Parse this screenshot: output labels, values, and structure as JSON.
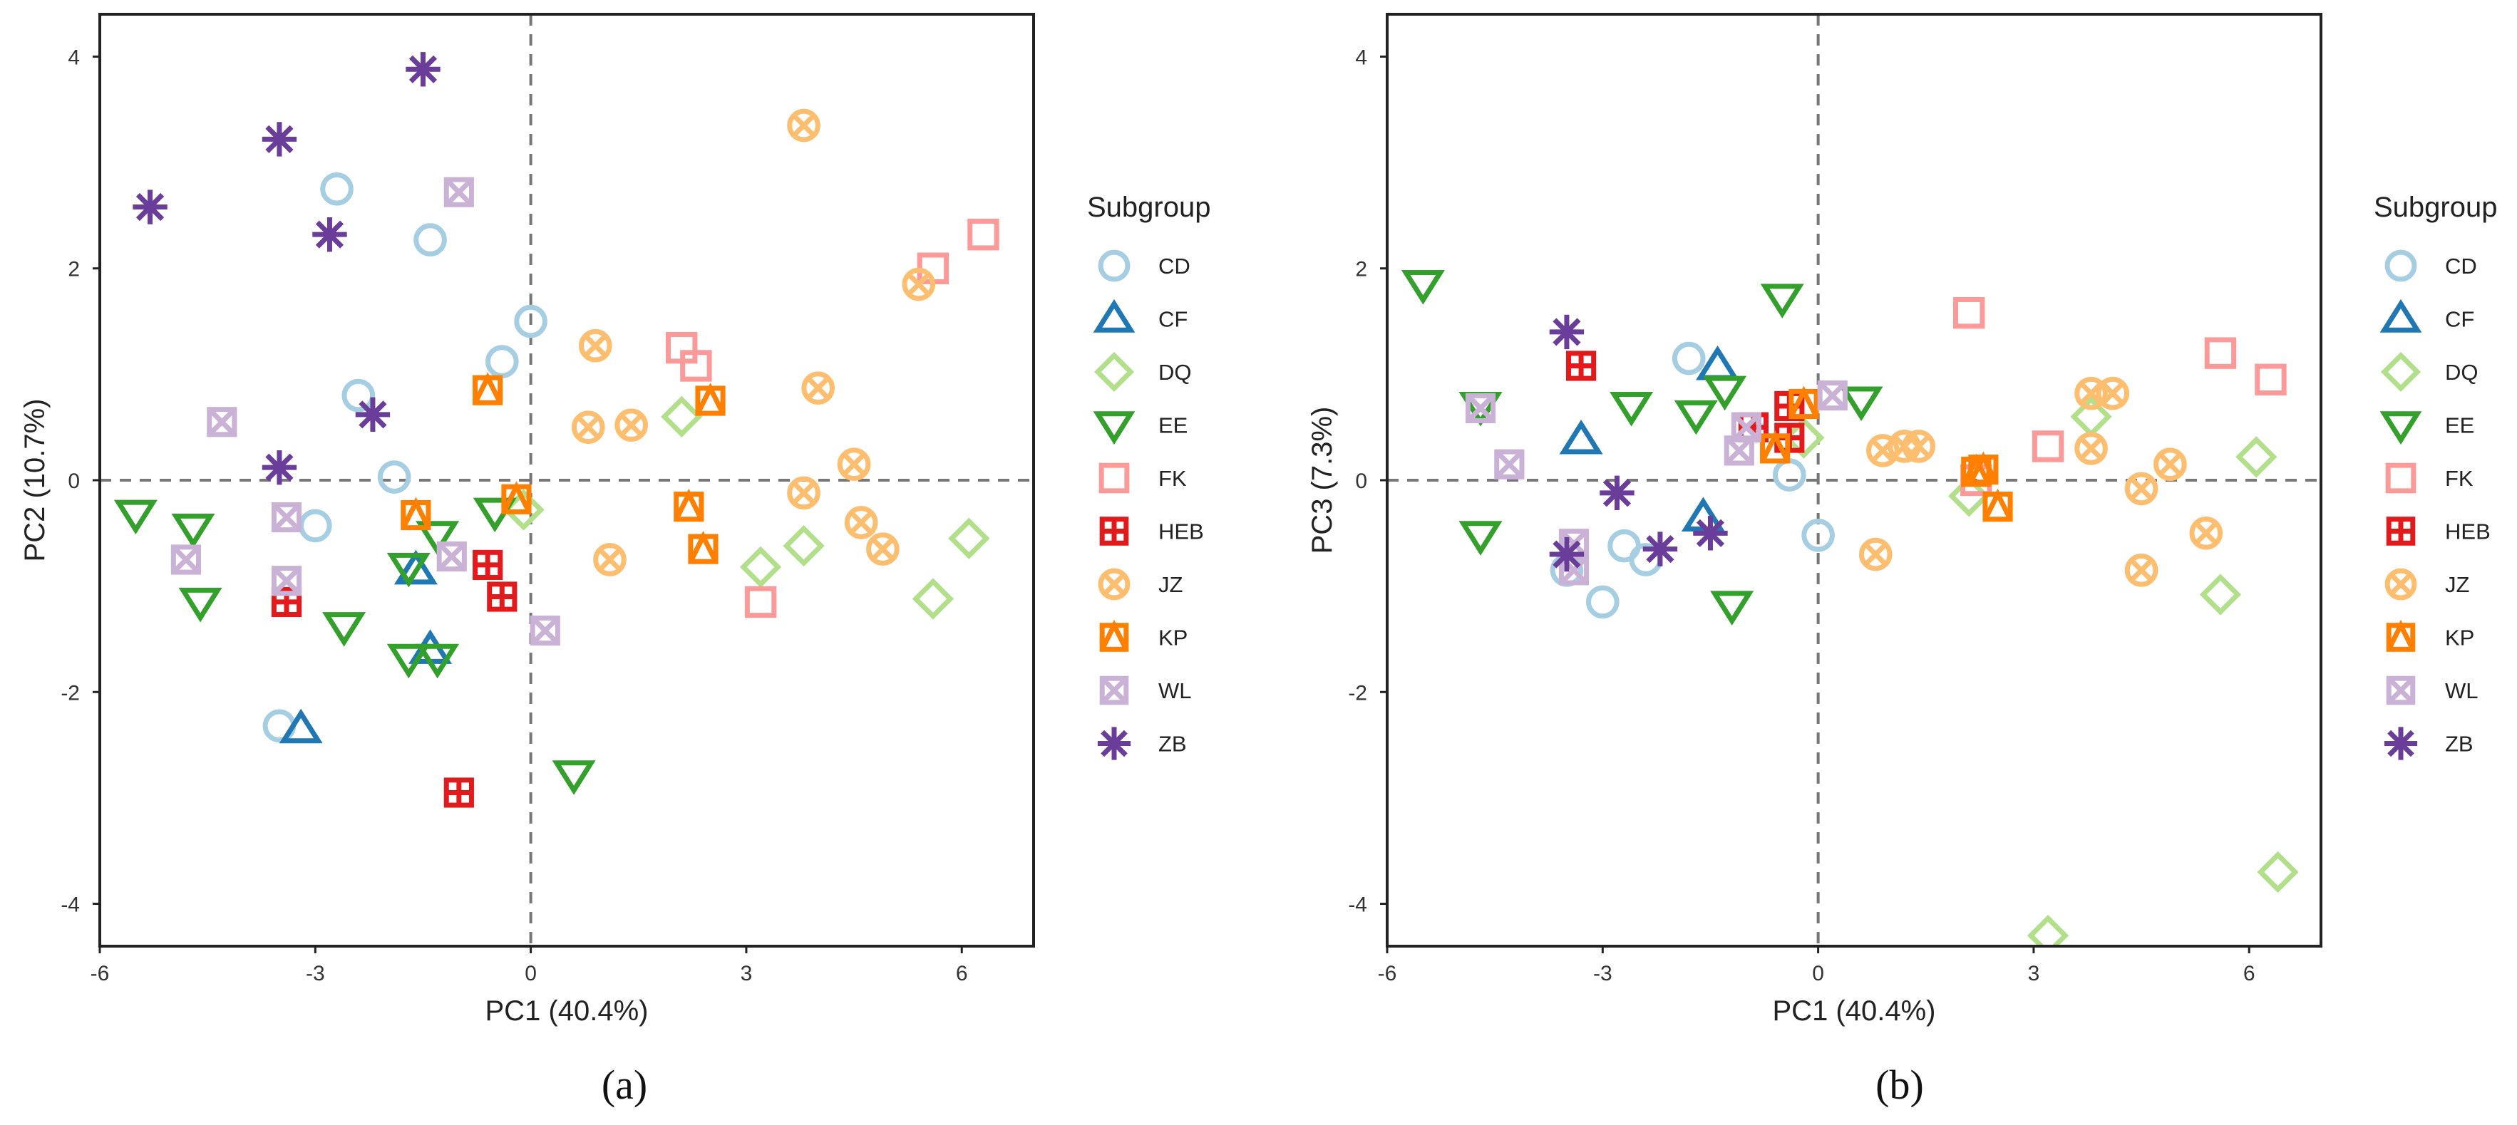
{
  "legend": {
    "title": "Subgroup",
    "items": [
      {
        "label": "CD",
        "shape": "circle",
        "color": "#a6cee3"
      },
      {
        "label": "CF",
        "shape": "triangle-up",
        "color": "#1f78b4"
      },
      {
        "label": "DQ",
        "shape": "diamond",
        "color": "#b2df8a"
      },
      {
        "label": "EE",
        "shape": "triangle-down",
        "color": "#33a02c"
      },
      {
        "label": "FK",
        "shape": "square",
        "color": "#fb9a99"
      },
      {
        "label": "HEB",
        "shape": "square-plus",
        "color": "#e31a1c"
      },
      {
        "label": "JZ",
        "shape": "circle-x",
        "color": "#fdbf6f"
      },
      {
        "label": "KP",
        "shape": "square-triangle",
        "color": "#ff7f00"
      },
      {
        "label": "WL",
        "shape": "square-x",
        "color": "#cab2d6"
      },
      {
        "label": "ZB",
        "shape": "asterisk",
        "color": "#6a3d9a"
      }
    ]
  },
  "chart_data": [
    {
      "type": "scatter",
      "panel": "(a)",
      "xlabel": "PC1 (40.4%)",
      "ylabel": "PC2 (10.7%)",
      "xlim": [
        -6,
        7
      ],
      "ylim": [
        -4.4,
        4.4
      ],
      "xticks": [
        -6,
        -3,
        0,
        3,
        6
      ],
      "yticks": [
        -4,
        -2,
        0,
        2,
        4
      ],
      "reference_lines": {
        "x": 0,
        "y": 0
      },
      "series": [
        {
          "name": "CD",
          "points": [
            [
              -2.7,
              2.75
            ],
            [
              -1.4,
              2.27
            ],
            [
              -2.4,
              0.8
            ],
            [
              -1.9,
              0.03
            ],
            [
              -3,
              -0.43
            ],
            [
              -0.4,
              1.12
            ],
            [
              0,
              1.5
            ],
            [
              -3.5,
              -2.32
            ]
          ]
        },
        {
          "name": "CF",
          "points": [
            [
              -1.6,
              -0.85
            ],
            [
              -1.4,
              -1.6
            ],
            [
              -3.2,
              -2.35
            ]
          ]
        },
        {
          "name": "DQ",
          "points": [
            [
              2.1,
              0.6
            ],
            [
              3.8,
              -0.62
            ],
            [
              3.2,
              -0.82
            ],
            [
              6.1,
              -0.55
            ],
            [
              5.6,
              -1.12
            ],
            [
              -0.1,
              -0.28
            ]
          ]
        },
        {
          "name": "EE",
          "points": [
            [
              -5.5,
              -0.32
            ],
            [
              -4.7,
              -0.45
            ],
            [
              -4.6,
              -1.15
            ],
            [
              -2.6,
              -1.38
            ],
            [
              -1.7,
              -0.82
            ],
            [
              -1.3,
              -0.52
            ],
            [
              -1.7,
              -1.68
            ],
            [
              -1.3,
              -1.68
            ],
            [
              -0.5,
              -0.3
            ],
            [
              0.6,
              -2.78
            ]
          ]
        },
        {
          "name": "FK",
          "points": [
            [
              2.1,
              1.25
            ],
            [
              2.3,
              1.08
            ],
            [
              5.6,
              2.0
            ],
            [
              6.3,
              2.32
            ],
            [
              3.2,
              -1.15
            ]
          ]
        },
        {
          "name": "HEB",
          "points": [
            [
              -3.4,
              -1.15
            ],
            [
              -0.6,
              -0.8
            ],
            [
              -0.4,
              -1.1
            ],
            [
              -1,
              -2.95
            ]
          ]
        },
        {
          "name": "JZ",
          "points": [
            [
              3.8,
              3.35
            ],
            [
              5.4,
              1.85
            ],
            [
              0.9,
              1.27
            ],
            [
              4,
              0.87
            ],
            [
              0.8,
              0.5
            ],
            [
              1.4,
              0.52
            ],
            [
              3.8,
              -0.12
            ],
            [
              4.5,
              0.15
            ],
            [
              4.6,
              -0.4
            ],
            [
              4.9,
              -0.65
            ],
            [
              1.1,
              -0.75
            ]
          ]
        },
        {
          "name": "KP",
          "points": [
            [
              -0.6,
              0.85
            ],
            [
              2.5,
              0.75
            ],
            [
              -1.6,
              -0.33
            ],
            [
              -0.2,
              -0.18
            ],
            [
              2.2,
              -0.25
            ],
            [
              2.4,
              -0.65
            ]
          ]
        },
        {
          "name": "WL",
          "points": [
            [
              -1,
              2.72
            ],
            [
              -4.3,
              0.55
            ],
            [
              -3.4,
              -0.35
            ],
            [
              -4.8,
              -0.75
            ],
            [
              -1.1,
              -0.72
            ],
            [
              -3.4,
              -0.95
            ],
            [
              0.2,
              -1.42
            ]
          ]
        },
        {
          "name": "ZB",
          "points": [
            [
              -1.5,
              3.88
            ],
            [
              -3.5,
              3.22
            ],
            [
              -5.3,
              2.58
            ],
            [
              -2.8,
              2.32
            ],
            [
              -2.2,
              0.62
            ],
            [
              -3.5,
              0.12
            ]
          ]
        }
      ]
    },
    {
      "type": "scatter",
      "panel": "(b)",
      "xlabel": "PC1 (40.4%)",
      "ylabel": "PC3 (7.3%)",
      "xlim": [
        -6,
        7
      ],
      "ylim": [
        -4.4,
        4.4
      ],
      "xticks": [
        -6,
        -3,
        0,
        3,
        6
      ],
      "yticks": [
        -4,
        -2,
        0,
        2,
        4
      ],
      "reference_lines": {
        "x": 0,
        "y": 0
      },
      "series": [
        {
          "name": "CD",
          "points": [
            [
              -1.8,
              1.15
            ],
            [
              -0.4,
              0.05
            ],
            [
              0,
              -0.52
            ],
            [
              -2.7,
              -0.62
            ],
            [
              -2.4,
              -0.75
            ],
            [
              -3.5,
              -0.85
            ],
            [
              -3,
              -1.15
            ]
          ]
        },
        {
          "name": "CF",
          "points": [
            [
              -1.4,
              1.08
            ],
            [
              -3.3,
              0.38
            ],
            [
              -1.6,
              -0.35
            ]
          ]
        },
        {
          "name": "DQ",
          "points": [
            [
              3.8,
              0.6
            ],
            [
              6.1,
              0.22
            ],
            [
              2.1,
              -0.15
            ],
            [
              5.6,
              -1.08
            ],
            [
              6.4,
              -3.7
            ],
            [
              3.2,
              -4.3
            ],
            [
              -0.2,
              0.4
            ]
          ]
        },
        {
          "name": "EE",
          "points": [
            [
              -5.5,
              1.85
            ],
            [
              -4.7,
              0.7
            ],
            [
              -0.5,
              1.72
            ],
            [
              -2.6,
              0.7
            ],
            [
              -1.7,
              0.62
            ],
            [
              -1.3,
              0.85
            ],
            [
              0.6,
              0.75
            ],
            [
              -4.7,
              -0.52
            ],
            [
              -1.2,
              -1.18
            ]
          ]
        },
        {
          "name": "FK",
          "points": [
            [
              2.1,
              1.58
            ],
            [
              5.6,
              1.2
            ],
            [
              6.3,
              0.95
            ],
            [
              3.2,
              0.32
            ],
            [
              2.2,
              0
            ]
          ]
        },
        {
          "name": "HEB",
          "points": [
            [
              -3.3,
              1.08
            ],
            [
              -0.4,
              0.7
            ],
            [
              -0.4,
              0.4
            ],
            [
              -0.9,
              0.5
            ]
          ]
        },
        {
          "name": "JZ",
          "points": [
            [
              3.8,
              0.82
            ],
            [
              4.1,
              0.82
            ],
            [
              3.8,
              0.3
            ],
            [
              1.2,
              0.32
            ],
            [
              1.4,
              0.32
            ],
            [
              0.9,
              0.28
            ],
            [
              4.5,
              -0.08
            ],
            [
              4.9,
              0.15
            ],
            [
              5.4,
              -0.5
            ],
            [
              4.5,
              -0.85
            ],
            [
              0.8,
              -0.7
            ]
          ]
        },
        {
          "name": "KP",
          "points": [
            [
              -0.2,
              0.72
            ],
            [
              -0.6,
              0.3
            ],
            [
              2.2,
              0.08
            ],
            [
              2.3,
              0.1
            ],
            [
              2.5,
              -0.25
            ]
          ]
        },
        {
          "name": "WL",
          "points": [
            [
              -4.7,
              0.68
            ],
            [
              -4.3,
              0.15
            ],
            [
              0.2,
              0.8
            ],
            [
              -1,
              0.5
            ],
            [
              -1.1,
              0.28
            ],
            [
              -3.4,
              -0.6
            ],
            [
              -3.4,
              -0.85
            ]
          ]
        },
        {
          "name": "ZB",
          "points": [
            [
              -3.5,
              1.4
            ],
            [
              -2.8,
              -0.12
            ],
            [
              -2.2,
              -0.65
            ],
            [
              -1.5,
              -0.5
            ],
            [
              -3.5,
              -0.7
            ]
          ]
        }
      ]
    }
  ]
}
